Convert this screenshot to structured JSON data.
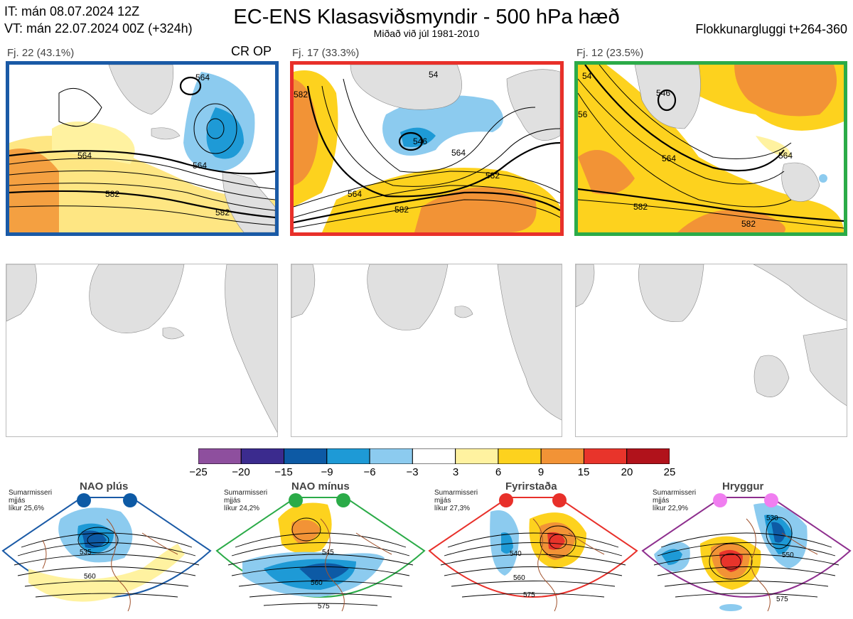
{
  "header": {
    "line1": "IT: mán 08.07.2024 12Z",
    "line2": "VT: mán 22.07.2024 00Z  (+324h)",
    "title": "EC-ENS Klasasviðsmyndir - 500 hPa hæð",
    "subtitle": "Miðað við júl 1981-2010",
    "window": "Flokkunargluggi t+264-360"
  },
  "clusters": [
    {
      "label": "Fj. 22 (43.1%)",
      "tag": "CR OP",
      "border": "#1a5aa6",
      "contours": [
        "564",
        "564",
        "582",
        "582",
        "564"
      ]
    },
    {
      "label": "Fj. 17 (33.3%)",
      "tag": "",
      "border": "#e8302a",
      "contours": [
        "564",
        "564",
        "582",
        "582",
        "546",
        "54",
        "582"
      ]
    },
    {
      "label": "Fj. 12 (23.5%)",
      "tag": "",
      "border": "#2bab48",
      "contours": [
        "564",
        "564",
        "582",
        "582",
        "54",
        "546",
        "56"
      ]
    }
  ],
  "colorbar": {
    "colors": [
      "#8e4f9e",
      "#3b2b8e",
      "#0d5aa5",
      "#1e9ad6",
      "#8ccbef",
      "#ffffff",
      "#fff2a0",
      "#fdd21e",
      "#f29336",
      "#e8342b",
      "#b1121b"
    ],
    "ticks": [
      "−25",
      "−20",
      "−15",
      "−9",
      "−6",
      "−3",
      "3",
      "6",
      "9",
      "15",
      "20",
      "25"
    ]
  },
  "regimes": [
    {
      "name": "NAO plús",
      "info": [
        "Sumarmisseri",
        "mjjás",
        "líkur 25,6%"
      ],
      "color": "#1a5aa6",
      "dot": "#0d5aa5",
      "contours": [
        "535",
        "560"
      ]
    },
    {
      "name": "NAO mínus",
      "info": [
        "Sumarmisseri",
        "mjjás",
        "líkur 24,2%"
      ],
      "color": "#2bab48",
      "dot": "#2bab48",
      "contours": [
        "545",
        "560",
        "575"
      ]
    },
    {
      "name": "Fyrirstaða",
      "info": [
        "Sumarmisseri",
        "mjjás",
        "líkur 27,3%"
      ],
      "color": "#e8302a",
      "dot": "#e8302a",
      "contours": [
        "540",
        "560",
        "575"
      ]
    },
    {
      "name": "Hryggur",
      "info": [
        "Sumarmisseri",
        "mjjás",
        "líkur 22,9%"
      ],
      "color": "#8e2f8e",
      "dot": "#f07ef0",
      "contours": [
        "530",
        "550",
        "575"
      ]
    }
  ]
}
